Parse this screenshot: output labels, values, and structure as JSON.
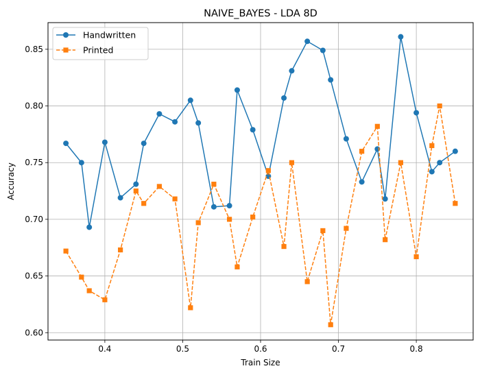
{
  "chart_data": {
    "type": "line",
    "title": "NAIVE_BAYES - LDA 8D",
    "xlabel": "Train Size",
    "ylabel": "Accuracy",
    "xlim": [
      0.327,
      0.873
    ],
    "ylim": [
      0.5935,
      0.8735
    ],
    "xticks": [
      0.4,
      0.5,
      0.6,
      0.7,
      0.8
    ],
    "yticks": [
      0.6,
      0.65,
      0.7,
      0.75,
      0.8,
      0.85
    ],
    "grid": true,
    "legend_position": "upper-left",
    "x": [
      0.35,
      0.37,
      0.38,
      0.4,
      0.42,
      0.44,
      0.45,
      0.47,
      0.49,
      0.51,
      0.52,
      0.54,
      0.56,
      0.57,
      0.59,
      0.61,
      0.63,
      0.64,
      0.66,
      0.68,
      0.69,
      0.71,
      0.73,
      0.75,
      0.76,
      0.78,
      0.8,
      0.82,
      0.83,
      0.85
    ],
    "series": [
      {
        "name": "Handwritten",
        "color": "#1f77b4",
        "marker": "circle",
        "linestyle": "solid",
        "values": [
          0.767,
          0.75,
          0.693,
          0.768,
          0.719,
          0.731,
          0.767,
          0.793,
          0.786,
          0.805,
          0.785,
          0.711,
          0.712,
          0.814,
          0.779,
          0.738,
          0.807,
          0.831,
          0.857,
          0.849,
          0.823,
          0.771,
          0.733,
          0.762,
          0.718,
          0.861,
          0.794,
          0.742,
          0.75,
          0.76
        ]
      },
      {
        "name": "Printed",
        "color": "#ff7f0e",
        "marker": "square",
        "linestyle": "dashed",
        "values": [
          0.672,
          0.649,
          0.637,
          0.629,
          0.673,
          0.725,
          0.714,
          0.729,
          0.718,
          0.622,
          0.697,
          0.731,
          0.7,
          0.658,
          0.702,
          0.743,
          0.676,
          0.75,
          0.645,
          0.69,
          0.607,
          0.692,
          0.76,
          0.782,
          0.682,
          0.75,
          0.667,
          0.765,
          0.8,
          0.714
        ]
      }
    ]
  }
}
